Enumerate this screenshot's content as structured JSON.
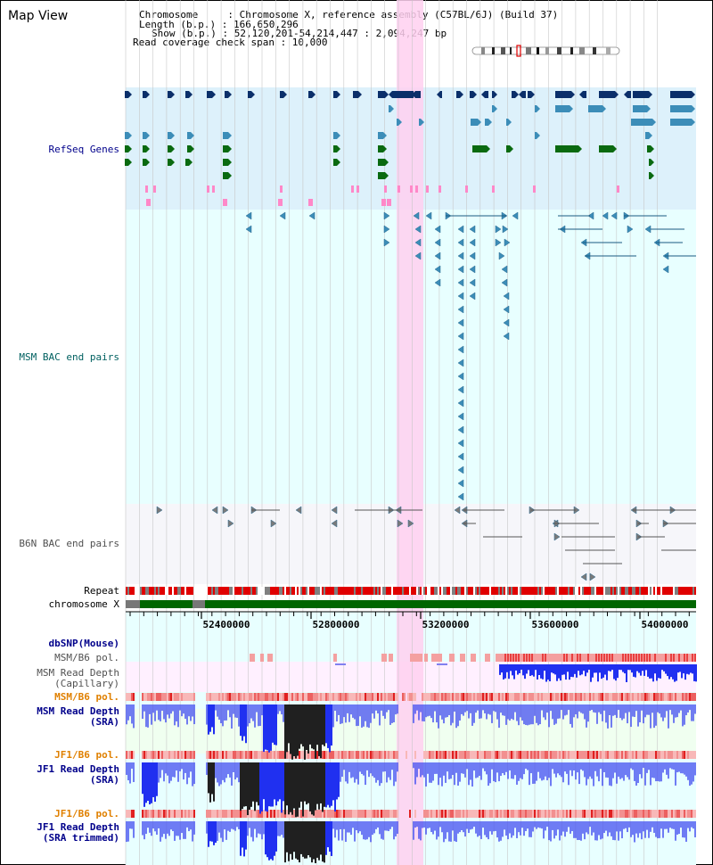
{
  "view_title": "Map View",
  "info_lines": [
    "Chromosome     : Chromosome X, reference assembly (C57BL/6J) (Build 37)",
    "Length (b.p.) : 166,650,296",
    "Show (b.p.) : 52,120,201-54,214,447 : 2,094,247 bp",
    "Read coverage check span : 10,000"
  ],
  "labels": {
    "refseq": "RefSeq Genes",
    "msm_bac": "MSM BAC end pairs",
    "b6n_bac": "B6N BAC end pairs",
    "repeat": "Repeat",
    "chromosome": "chromosome X",
    "dbsnp": "dbSNP(Mouse)",
    "msm_pol_1": "MSM/B6 pol.",
    "msm_depth_cap_1": "MSM Read Depth",
    "msm_depth_cap_2": "(Capillary)",
    "msm_pol_2": "MSM/B6 pol.",
    "msm_depth_sra_1": "MSM Read Depth",
    "msm_depth_sra_2": "(SRA)",
    "jf1_pol_1": "JF1/B6 pol.",
    "jf1_depth_sra_1": "JF1 Read Depth",
    "jf1_depth_sra_2": "(SRA)",
    "jf1_pol_2": "JF1/B6 pol.",
    "jf1_trim_1": "JF1 Read Depth",
    "jf1_trim_2": "(SRA trimmed)"
  },
  "axis": {
    "ticks": [
      "52400000",
      "52800000",
      "53200000",
      "53600000",
      "54000000"
    ]
  },
  "colors": {
    "label_blue": "#00008B",
    "label_teal": "#006060",
    "label_gray": "#505050",
    "label_orange": "#E08000",
    "refseq_bg": "#DDF1FB",
    "bac_bg": "#E8FFFF",
    "b6n_bg": "#F6F6FA",
    "highlight": "#FFD0F0",
    "gene_dark": "#0B2F6A",
    "gene_mid": "#3C8DB8",
    "gene_green": "#0A6A10",
    "pink_mark": "#FF88C8",
    "repeat_red": "#E00000",
    "chromosome_green": "#006600",
    "depth_blue": "#2030F0",
    "depth_dark": "#202020"
  }
}
